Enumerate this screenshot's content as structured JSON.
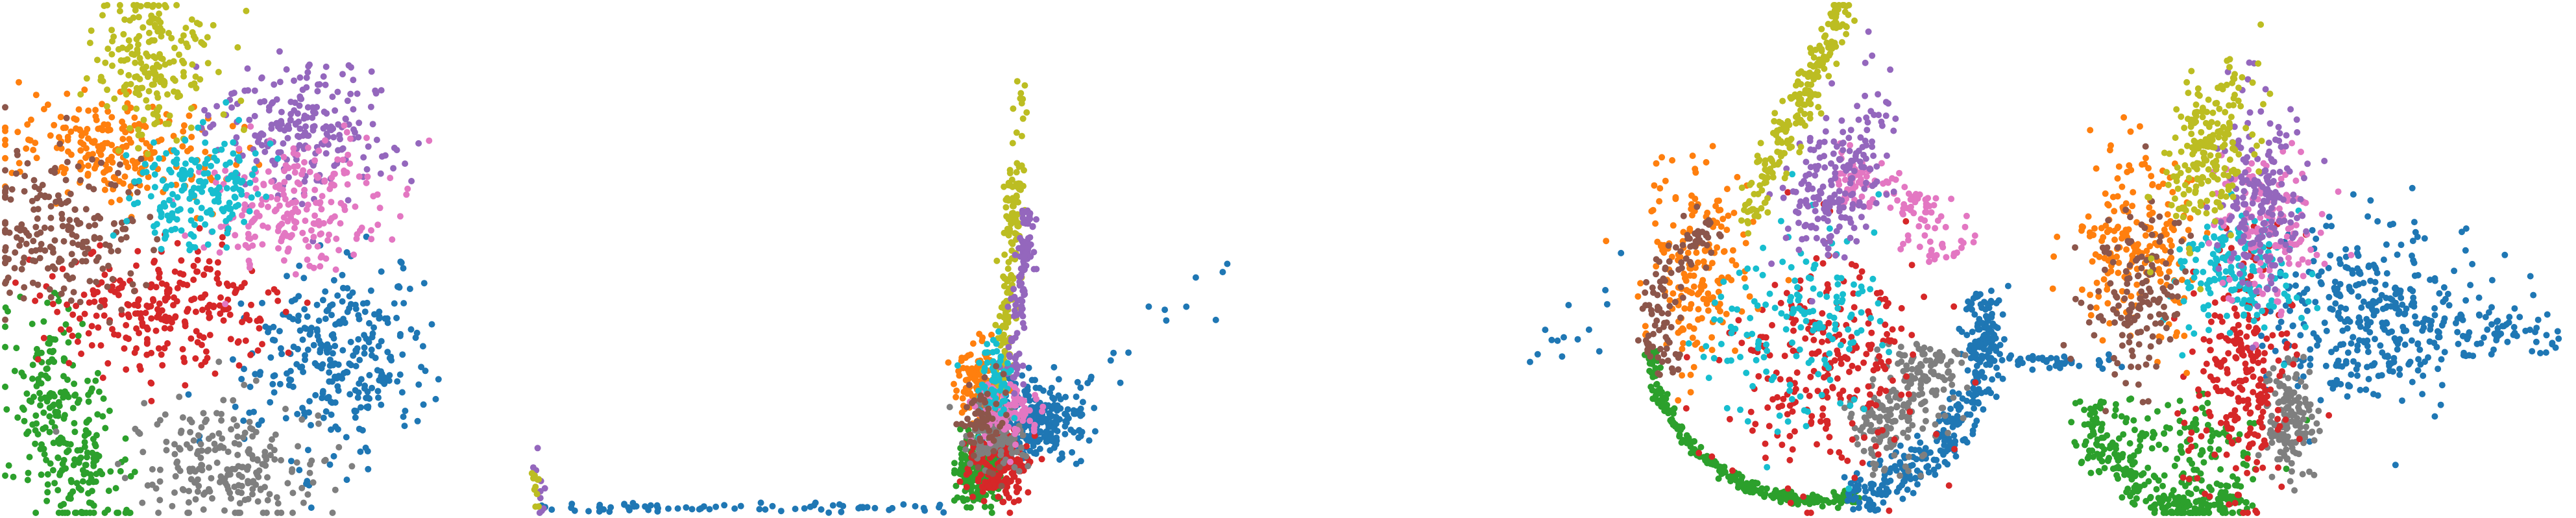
{
  "figure": {
    "title": ""
  },
  "palette": {
    "c0": "#1f77b4",
    "c1": "#ff7f0e",
    "c2": "#2ca02c",
    "c3": "#d62728",
    "c4": "#9467bd",
    "c5": "#8c564b",
    "c6": "#e377c2",
    "c7": "#7f7f7f",
    "c8": "#bcbd22",
    "c9": "#17becf"
  },
  "chart_data": [
    {
      "type": "scatter",
      "title": "",
      "xlabel": "",
      "ylabel": "",
      "xlim": [
        0,
        100
      ],
      "ylim": [
        0,
        100
      ],
      "grid": false,
      "axes": "hidden",
      "legend": "none",
      "classes": [
        {
          "color": "#1f77b4",
          "count": 300,
          "shape": "blob",
          "cx": 65,
          "cy": 30,
          "sx": 9,
          "sy": 9,
          "rot": -25
        },
        {
          "color": "#ff7f0e",
          "count": 220,
          "shape": "blob",
          "cx": 22,
          "cy": 72,
          "sx": 11,
          "sy": 5,
          "rot": -10
        },
        {
          "color": "#2ca02c",
          "count": 260,
          "shape": "blob",
          "cx": 12,
          "cy": 17,
          "sx": 5,
          "sy": 13,
          "rot": 15
        },
        {
          "color": "#d62728",
          "count": 260,
          "shape": "blob",
          "cx": 32,
          "cy": 40,
          "sx": 11,
          "sy": 6,
          "rot": 0
        },
        {
          "color": "#9467bd",
          "count": 220,
          "shape": "blob",
          "cx": 58,
          "cy": 76,
          "sx": 9,
          "sy": 7,
          "rot": 0
        },
        {
          "color": "#8c564b",
          "count": 200,
          "shape": "blob",
          "cx": 12,
          "cy": 55,
          "sx": 9,
          "sy": 8,
          "rot": -35
        },
        {
          "color": "#e377c2",
          "count": 220,
          "shape": "blob",
          "cx": 57,
          "cy": 60,
          "sx": 9,
          "sy": 6,
          "rot": 10
        },
        {
          "color": "#7f7f7f",
          "count": 220,
          "shape": "blob",
          "cx": 43,
          "cy": 10,
          "sx": 9,
          "sy": 6,
          "rot": -5
        },
        {
          "color": "#bcbd22",
          "count": 200,
          "shape": "blob",
          "cx": 29,
          "cy": 89,
          "sx": 6,
          "sy": 7,
          "rot": 0
        },
        {
          "color": "#17becf",
          "count": 180,
          "shape": "blob",
          "cx": 38,
          "cy": 63,
          "sx": 6,
          "sy": 6,
          "rot": 0
        }
      ]
    },
    {
      "type": "scatter",
      "title": "",
      "xlabel": "",
      "ylabel": "",
      "xlim": [
        0,
        100
      ],
      "ylim": [
        0,
        100
      ],
      "grid": false,
      "axes": "hidden",
      "legend": "none",
      "classes": [
        {
          "color": "#1f77b4",
          "count": 260,
          "shape": "blob",
          "cx": 67,
          "cy": 18,
          "sx": 3,
          "sy": 4,
          "rot": 0
        },
        {
          "color": "#1f77b4",
          "count": 70,
          "shape": "trail",
          "x0": 2,
          "y0": 1,
          "x1": 55,
          "y1": 1,
          "spread": 0.5
        },
        {
          "color": "#1f77b4",
          "count": 24,
          "shape": "trail",
          "x0": 62,
          "y0": 10,
          "x1": 92,
          "y1": 48,
          "spread": 3
        },
        {
          "color": "#2ca02c",
          "count": 170,
          "shape": "blob",
          "cx": 59,
          "cy": 8,
          "sx": 1.5,
          "sy": 3.5,
          "rot": 0
        },
        {
          "color": "#d62728",
          "count": 170,
          "shape": "blob",
          "cx": 62,
          "cy": 9,
          "sx": 1.8,
          "sy": 3.2,
          "rot": 0
        },
        {
          "color": "#ff7f0e",
          "count": 140,
          "shape": "blob",
          "cx": 59.5,
          "cy": 25,
          "sx": 1.5,
          "sy": 4,
          "rot": 0
        },
        {
          "color": "#7f7f7f",
          "count": 120,
          "shape": "blob",
          "cx": 61,
          "cy": 15,
          "sx": 2,
          "sy": 3,
          "rot": 0
        },
        {
          "color": "#e377c2",
          "count": 100,
          "shape": "blob",
          "cx": 62.5,
          "cy": 20,
          "sx": 2,
          "sy": 3,
          "rot": 0
        },
        {
          "color": "#bcbd22",
          "count": 150,
          "shape": "trail",
          "x0": 62,
          "y0": 25,
          "x1": 64,
          "y1": 68,
          "spread": 1.2
        },
        {
          "color": "#9467bd",
          "count": 110,
          "shape": "trail",
          "x0": 63,
          "y0": 25,
          "x1": 66,
          "y1": 60,
          "spread": 1.3
        },
        {
          "color": "#17becf",
          "count": 60,
          "shape": "blob",
          "cx": 61,
          "cy": 26,
          "sx": 1.5,
          "sy": 5,
          "rot": 0
        },
        {
          "color": "#8c564b",
          "count": 60,
          "shape": "blob",
          "cx": 60,
          "cy": 18,
          "sx": 1.5,
          "sy": 5,
          "rot": 0
        },
        {
          "color": "#bcbd22",
          "count": 18,
          "shape": "trail",
          "x0": 63,
          "y0": 60,
          "x1": 65,
          "y1": 86,
          "spread": 1
        },
        {
          "color": "#9467bd",
          "count": 10,
          "shape": "blob",
          "cx": 2,
          "cy": 6,
          "sx": 0.5,
          "sy": 3,
          "rot": 0
        },
        {
          "color": "#bcbd22",
          "count": 10,
          "shape": "blob",
          "cx": 1.5,
          "cy": 5,
          "sx": 0.5,
          "sy": 3,
          "rot": 0
        }
      ]
    },
    {
      "type": "scatter",
      "title": "",
      "xlabel": "",
      "ylabel": "",
      "xlim": [
        0,
        100
      ],
      "ylim": [
        0,
        100
      ],
      "grid": false,
      "axes": "hidden",
      "legend": "none",
      "classes": [
        {
          "color": "#2ca02c",
          "count": 260,
          "shape": "arc",
          "cx": 53,
          "cy": 35,
          "r": 31,
          "a0": 185,
          "a1": 285,
          "spread": 0.6
        },
        {
          "color": "#1f77b4",
          "count": 320,
          "shape": "arc",
          "cx": 53,
          "cy": 35,
          "r": 31,
          "a0": 280,
          "a1": 375,
          "spread": 2
        },
        {
          "color": "#1f77b4",
          "count": 30,
          "shape": "trail",
          "x0": 83,
          "y0": 30,
          "x1": 100,
          "y1": 30,
          "spread": 0.8
        },
        {
          "color": "#1f77b4",
          "count": 14,
          "shape": "trail",
          "x0": 0,
          "y0": 30,
          "x1": 22,
          "y1": 48,
          "spread": 4
        },
        {
          "color": "#7f7f7f",
          "count": 220,
          "shape": "arc",
          "cx": 53,
          "cy": 35,
          "r": 22,
          "a0": 290,
          "a1": 355,
          "spread": 4
        },
        {
          "color": "#d62728",
          "count": 250,
          "shape": "blob",
          "cx": 55,
          "cy": 28,
          "sx": 10,
          "sy": 12,
          "rot": 0
        },
        {
          "color": "#ff7f0e",
          "count": 180,
          "shape": "blob",
          "cx": 31,
          "cy": 48,
          "sx": 5,
          "sy": 10,
          "rot": 0
        },
        {
          "color": "#17becf",
          "count": 160,
          "shape": "blob",
          "cx": 50,
          "cy": 38,
          "sx": 9,
          "sy": 10,
          "rot": 0
        },
        {
          "color": "#8c564b",
          "count": 110,
          "shape": "arc",
          "cx": 53,
          "cy": 35,
          "r": 29,
          "a0": 130,
          "a1": 195,
          "spread": 2
        },
        {
          "color": "#e377c2",
          "count": 130,
          "shape": "arc",
          "cx": 53,
          "cy": 35,
          "r": 30,
          "a0": 30,
          "a1": 85,
          "spread": 3
        },
        {
          "color": "#9467bd",
          "count": 200,
          "shape": "blob",
          "cx": 57,
          "cy": 66,
          "sx": 4,
          "sy": 9,
          "rot": -20
        },
        {
          "color": "#bcbd22",
          "count": 220,
          "shape": "trail",
          "x0": 40,
          "y0": 58,
          "x1": 58,
          "y1": 99,
          "spread": 2.5
        }
      ]
    },
    {
      "type": "scatter",
      "title": "",
      "xlabel": "",
      "ylabel": "",
      "xlim": [
        0,
        100
      ],
      "ylim": [
        0,
        100
      ],
      "grid": false,
      "axes": "hidden",
      "legend": "none",
      "classes": [
        {
          "color": "#2ca02c",
          "count": 240,
          "shape": "arc",
          "cx": 28,
          "cy": 22,
          "r": 20,
          "a0": 180,
          "a1": 300,
          "spread": 2
        },
        {
          "color": "#2ca02c",
          "count": 120,
          "shape": "blob",
          "cx": 26,
          "cy": 14,
          "sx": 8,
          "sy": 5,
          "rot": 0
        },
        {
          "color": "#1f77b4",
          "count": 360,
          "shape": "blob",
          "cx": 62,
          "cy": 38,
          "sx": 10,
          "sy": 9,
          "rot": 0
        },
        {
          "color": "#1f77b4",
          "count": 60,
          "shape": "trail",
          "x0": 72,
          "y0": 37,
          "x1": 99,
          "y1": 35,
          "spread": 2
        },
        {
          "color": "#1f77b4",
          "count": 16,
          "shape": "trail",
          "x0": 0,
          "y0": 29,
          "x1": 14,
          "y1": 30,
          "spread": 0.8
        },
        {
          "color": "#7f7f7f",
          "count": 150,
          "shape": "blob",
          "cx": 46,
          "cy": 19,
          "sx": 2.5,
          "sy": 6,
          "rot": 0
        },
        {
          "color": "#d62728",
          "count": 250,
          "shape": "blob",
          "cx": 37,
          "cy": 28,
          "sx": 5,
          "sy": 12,
          "rot": 0
        },
        {
          "color": "#ff7f0e",
          "count": 200,
          "shape": "blob",
          "cx": 17,
          "cy": 53,
          "sx": 6,
          "sy": 9,
          "rot": 0
        },
        {
          "color": "#17becf",
          "count": 170,
          "shape": "blob",
          "cx": 36,
          "cy": 47,
          "sx": 7,
          "sy": 6,
          "rot": 0
        },
        {
          "color": "#8c564b",
          "count": 150,
          "shape": "blob",
          "cx": 16,
          "cy": 42,
          "sx": 5,
          "sy": 9,
          "rot": 0
        },
        {
          "color": "#e377c2",
          "count": 140,
          "shape": "blob",
          "cx": 42,
          "cy": 56,
          "sx": 5,
          "sy": 8,
          "rot": 0
        },
        {
          "color": "#9467bd",
          "count": 190,
          "shape": "blob",
          "cx": 40,
          "cy": 62,
          "sx": 4,
          "sy": 9,
          "rot": 0
        },
        {
          "color": "#bcbd22",
          "count": 210,
          "shape": "blob",
          "cx": 30,
          "cy": 71,
          "sx": 4,
          "sy": 9,
          "rot": -15
        }
      ]
    }
  ]
}
